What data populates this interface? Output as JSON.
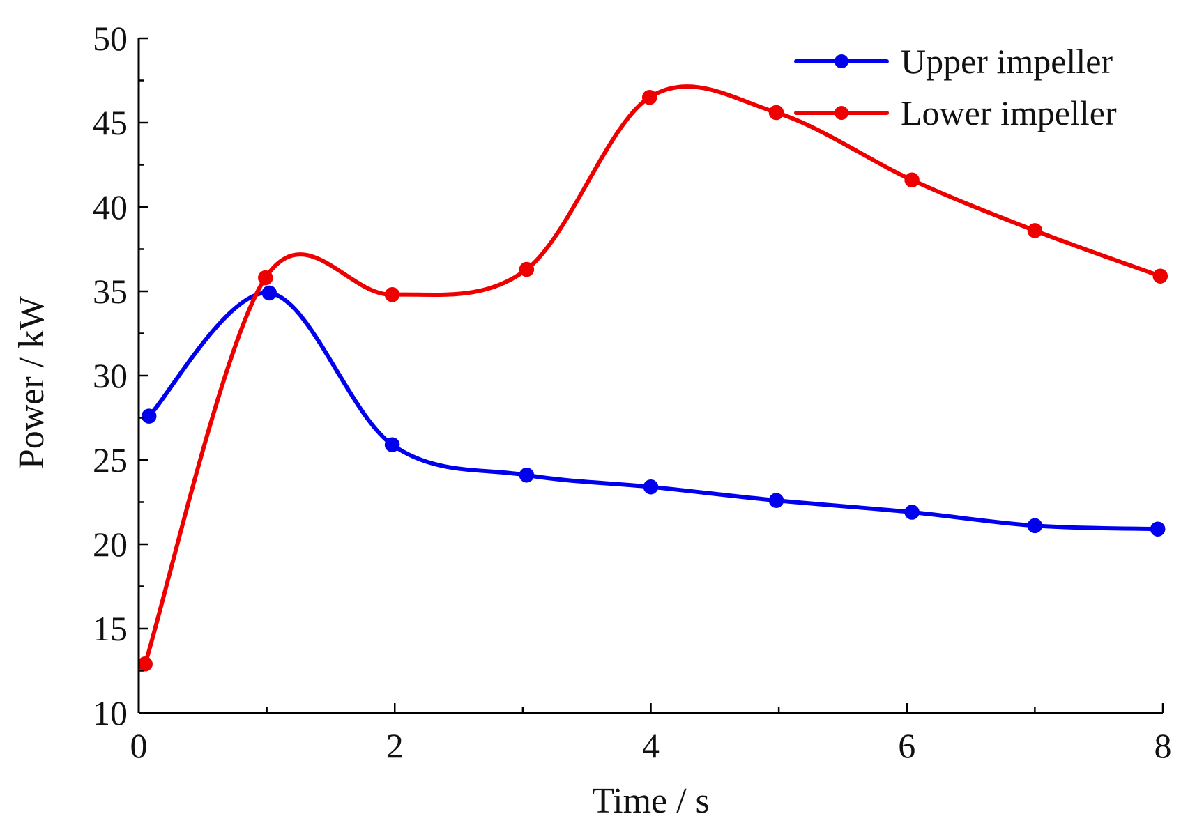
{
  "chart_data": {
    "type": "line",
    "title": "",
    "xlabel": "Time / s",
    "ylabel": "Power / kW",
    "xlim": [
      0,
      8
    ],
    "ylim": [
      10,
      50
    ],
    "xticks": [
      0,
      2,
      4,
      6,
      8
    ],
    "yticks": [
      10,
      15,
      20,
      25,
      30,
      35,
      40,
      45,
      50
    ],
    "x_minor_step": 1,
    "y_minor_step": 2.5,
    "grid": false,
    "legend_position": "top-right",
    "series": [
      {
        "name": "Upper impeller",
        "color": "#0000ee",
        "marker": "circle",
        "x": [
          0.08,
          1.02,
          1.98,
          3.03,
          4.0,
          4.98,
          6.04,
          7.0,
          7.96
        ],
        "y": [
          27.6,
          34.9,
          25.9,
          24.1,
          23.4,
          22.6,
          21.9,
          21.1,
          20.9
        ]
      },
      {
        "name": "Lower impeller",
        "color": "#ee0000",
        "marker": "circle",
        "x": [
          0.05,
          0.99,
          1.98,
          3.03,
          3.99,
          4.98,
          6.04,
          7.0,
          7.98
        ],
        "y": [
          12.9,
          35.8,
          34.8,
          36.3,
          46.5,
          45.6,
          41.6,
          38.6,
          35.9
        ]
      }
    ]
  }
}
